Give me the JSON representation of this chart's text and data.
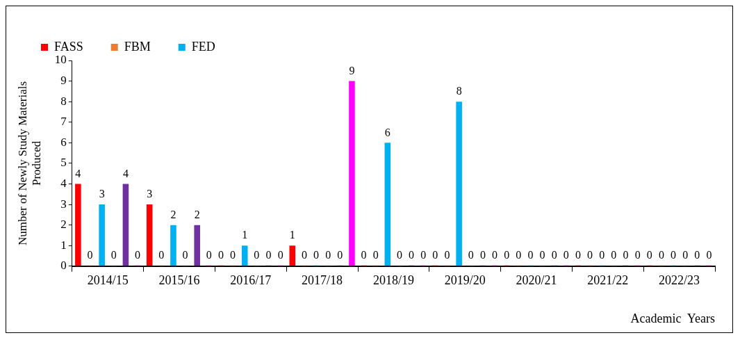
{
  "chart_data": {
    "type": "bar",
    "xlabel": "Academic  Years",
    "ylabel": "Number of Newly Study Materials\nProduced",
    "categories": [
      "2014/15",
      "2015/16",
      "2016/17",
      "2017/18",
      "2018/19",
      "2019/20",
      "2020/21",
      "2021/22",
      "2022/23"
    ],
    "series": [
      {
        "name": "FASS",
        "color": "#ff0000",
        "values": [
          4,
          3,
          0,
          1,
          0,
          0,
          0,
          0,
          0
        ]
      },
      {
        "name": "FBM",
        "color": "#ed7d31",
        "values": [
          0,
          0,
          0,
          0,
          0,
          0,
          0,
          0,
          0
        ]
      },
      {
        "name": "FED",
        "color": "#00b0f0",
        "values": [
          3,
          2,
          1,
          0,
          6,
          8,
          0,
          0,
          0
        ]
      },
      {
        "color": "#a5a5a5",
        "values": [
          0,
          0,
          0,
          0,
          0,
          0,
          0,
          0,
          0
        ]
      },
      {
        "color": "#7030a0",
        "values": [
          4,
          2,
          0,
          0,
          0,
          0,
          0,
          0,
          0
        ]
      },
      {
        "color": "#ff00ff",
        "values": [
          0,
          0,
          0,
          9,
          0,
          0,
          0,
          0,
          0
        ]
      }
    ],
    "ylim": [
      0,
      10
    ],
    "yticks": [
      0,
      1,
      2,
      3,
      4,
      5,
      6,
      7,
      8,
      9,
      10
    ],
    "grid": false,
    "legend": "top left",
    "data_labels": true
  }
}
